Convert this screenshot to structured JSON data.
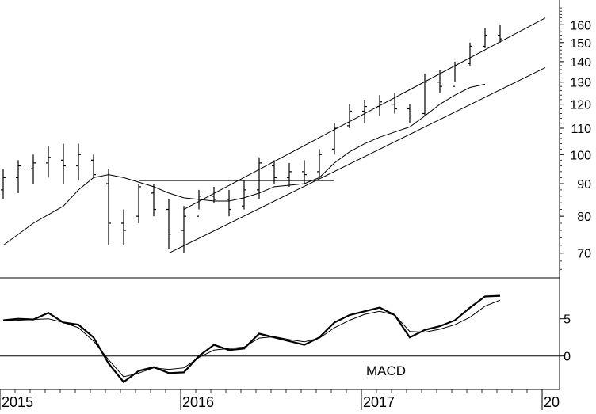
{
  "chart_data": [
    {
      "type": "ohlc",
      "panel": "price",
      "yscale": "log",
      "ylim": [
        64,
        175
      ],
      "y_ticks": [
        70,
        80,
        90,
        100,
        110,
        120,
        130,
        140,
        150,
        160
      ],
      "y_tick_labels": [
        "70",
        "80",
        "90",
        "100",
        "110",
        "120",
        "130",
        "140",
        "150",
        "160"
      ],
      "x_labels": [
        "2015",
        "2016",
        "2017",
        "20"
      ],
      "x_label_dates": [
        "2015-01",
        "2016-01",
        "2017-01",
        "2018-01"
      ],
      "series": [
        {
          "kind": "weekly-bars",
          "points": [
            [
              "2015-01",
              85,
              95,
              88,
              92
            ],
            [
              "2015-02",
              87,
              98,
              92,
              96
            ],
            [
              "2015-03",
              90,
              100,
              95,
              97
            ],
            [
              "2015-04",
              92,
              103,
              97,
              99
            ],
            [
              "2015-05",
              90,
              104,
              98,
              96
            ],
            [
              "2015-06",
              91,
              104,
              96,
              100
            ],
            [
              "2015-07",
              92,
              100,
              98,
              93
            ],
            [
              "2015-08",
              72,
              95,
              90,
              78
            ],
            [
              "2015-09",
              72,
              82,
              78,
              76
            ],
            [
              "2015-10",
              78,
              90,
              80,
              89
            ],
            [
              "2015-11",
              80,
              90,
              87,
              82
            ],
            [
              "2015-12",
              71,
              85,
              82,
              75
            ],
            [
              "2016-01",
              70,
              83,
              76,
              80
            ],
            [
              "2016-02",
              82,
              88,
              80,
              86
            ],
            [
              "2016-03",
              84,
              89,
              86,
              85
            ],
            [
              "2016-04",
              80,
              88,
              85,
              82
            ],
            [
              "2016-05",
              82,
              91,
              83,
              88
            ],
            [
              "2016-06",
              85,
              99,
              88,
              97
            ],
            [
              "2016-07",
              90,
              98,
              96,
              92
            ],
            [
              "2016-08",
              89,
              97,
              92,
              94
            ],
            [
              "2016-09",
              90,
              98,
              94,
              93
            ],
            [
              "2016-10",
              92,
              102,
              94,
              100
            ],
            [
              "2016-11",
              100,
              112,
              102,
              110
            ],
            [
              "2016-12",
              110,
              120,
              111,
              117
            ],
            [
              "2017-01",
              112,
              122,
              117,
              119
            ],
            [
              "2017-02",
              115,
              124,
              119,
              121
            ],
            [
              "2017-03",
              116,
              125,
              120,
              118
            ],
            [
              "2017-04",
              112,
              120,
              118,
              115
            ],
            [
              "2017-05",
              115,
              134,
              116,
              130
            ],
            [
              "2017-06",
              125,
              136,
              130,
              128
            ],
            [
              "2017-07",
              130,
              140,
              128,
              138
            ],
            [
              "2017-08",
              138,
              150,
              139,
              148
            ],
            [
              "2017-09",
              147,
              158,
              148,
              154
            ],
            [
              "2017-10",
              150,
              160,
              154,
              152
            ]
          ]
        },
        {
          "kind": "moving-average",
          "points": [
            [
              "2015-01",
              72
            ],
            [
              "2015-03",
              78
            ],
            [
              "2015-05",
              83
            ],
            [
              "2015-06",
              88
            ],
            [
              "2015-07",
              92
            ],
            [
              "2015-08",
              93
            ],
            [
              "2015-09",
              92
            ],
            [
              "2015-10",
              90.5
            ],
            [
              "2015-11",
              89
            ],
            [
              "2015-12",
              87
            ],
            [
              "2016-01",
              85.5
            ],
            [
              "2016-03",
              84.5
            ],
            [
              "2016-04",
              84.5
            ],
            [
              "2016-05",
              85.5
            ],
            [
              "2016-06",
              87
            ],
            [
              "2016-07",
              89
            ],
            [
              "2016-08",
              89.5
            ],
            [
              "2016-09",
              90
            ],
            [
              "2016-10",
              92
            ],
            [
              "2016-11",
              97
            ],
            [
              "2016-12",
              101
            ],
            [
              "2017-01",
              104
            ],
            [
              "2017-02",
              106.5
            ],
            [
              "2017-03",
              108.5
            ],
            [
              "2017-04",
              110.5
            ],
            [
              "2017-05",
              115
            ],
            [
              "2017-06",
              120
            ],
            [
              "2017-07",
              124
            ],
            [
              "2017-08",
              127.5
            ],
            [
              "2017-09",
              129
            ]
          ]
        }
      ],
      "annotations": [
        {
          "kind": "trendline",
          "from": [
            "2015-12",
            70
          ],
          "to": [
            "2018-01",
            137
          ]
        },
        {
          "kind": "trendline",
          "from": [
            "2016-01",
            82
          ],
          "to": [
            "2018-01",
            164
          ]
        },
        {
          "kind": "horizontal-line",
          "from": [
            "2015-10",
            91
          ],
          "to": [
            "2016-11",
            91
          ]
        }
      ]
    },
    {
      "type": "line",
      "panel": "indicator",
      "ylim": [
        -4.5,
        10.5
      ],
      "y_ticks": [
        0,
        5
      ],
      "y_tick_labels": [
        "0",
        "5"
      ],
      "annotations": [
        {
          "kind": "label",
          "text": "MACD"
        },
        {
          "kind": "zero-line",
          "value": 0
        }
      ],
      "series": [
        {
          "kind": "macd",
          "points": [
            [
              "2015-01",
              4.8
            ],
            [
              "2015-02",
              5.0
            ],
            [
              "2015-03",
              4.9
            ],
            [
              "2015-04",
              5.8
            ],
            [
              "2015-05",
              4.5
            ],
            [
              "2015-06",
              4.2
            ],
            [
              "2015-07",
              2.5
            ],
            [
              "2015-08",
              -1.0
            ],
            [
              "2015-09",
              -3.5
            ],
            [
              "2015-10",
              -2.0
            ],
            [
              "2015-11",
              -1.5
            ],
            [
              "2015-12",
              -2.3
            ],
            [
              "2016-01",
              -2.2
            ],
            [
              "2016-02",
              0.0
            ],
            [
              "2016-03",
              1.5
            ],
            [
              "2016-04",
              0.8
            ],
            [
              "2016-05",
              1.0
            ],
            [
              "2016-06",
              3.0
            ],
            [
              "2016-07",
              2.5
            ],
            [
              "2016-08",
              2.0
            ],
            [
              "2016-09",
              1.5
            ],
            [
              "2016-10",
              2.5
            ],
            [
              "2016-11",
              4.5
            ],
            [
              "2016-12",
              5.5
            ],
            [
              "2017-01",
              6.0
            ],
            [
              "2017-02",
              6.5
            ],
            [
              "2017-03",
              5.5
            ],
            [
              "2017-04",
              2.5
            ],
            [
              "2017-05",
              3.5
            ],
            [
              "2017-06",
              4.0
            ],
            [
              "2017-07",
              4.8
            ],
            [
              "2017-08",
              6.5
            ],
            [
              "2017-09",
              8.0
            ],
            [
              "2017-10",
              8.1
            ]
          ]
        },
        {
          "kind": "signal",
          "points": [
            [
              "2015-01",
              4.7
            ],
            [
              "2015-03",
              4.9
            ],
            [
              "2015-04",
              5.0
            ],
            [
              "2015-05",
              4.5
            ],
            [
              "2015-06",
              3.8
            ],
            [
              "2015-07",
              2.0
            ],
            [
              "2015-08",
              -0.5
            ],
            [
              "2015-09",
              -2.8
            ],
            [
              "2015-10",
              -2.3
            ],
            [
              "2015-11",
              -1.6
            ],
            [
              "2015-12",
              -1.8
            ],
            [
              "2016-01",
              -1.6
            ],
            [
              "2016-02",
              -0.2
            ],
            [
              "2016-03",
              0.8
            ],
            [
              "2016-04",
              1.0
            ],
            [
              "2016-05",
              1.2
            ],
            [
              "2016-06",
              2.4
            ],
            [
              "2016-07",
              2.6
            ],
            [
              "2016-08",
              2.2
            ],
            [
              "2016-09",
              1.9
            ],
            [
              "2016-10",
              2.4
            ],
            [
              "2016-11",
              3.8
            ],
            [
              "2016-12",
              4.8
            ],
            [
              "2017-01",
              5.6
            ],
            [
              "2017-02",
              6.0
            ],
            [
              "2017-03",
              5.5
            ],
            [
              "2017-04",
              3.3
            ],
            [
              "2017-05",
              3.2
            ],
            [
              "2017-06",
              3.6
            ],
            [
              "2017-07",
              4.2
            ],
            [
              "2017-08",
              5.2
            ],
            [
              "2017-09",
              6.7
            ],
            [
              "2017-10",
              7.5
            ]
          ]
        }
      ]
    }
  ]
}
